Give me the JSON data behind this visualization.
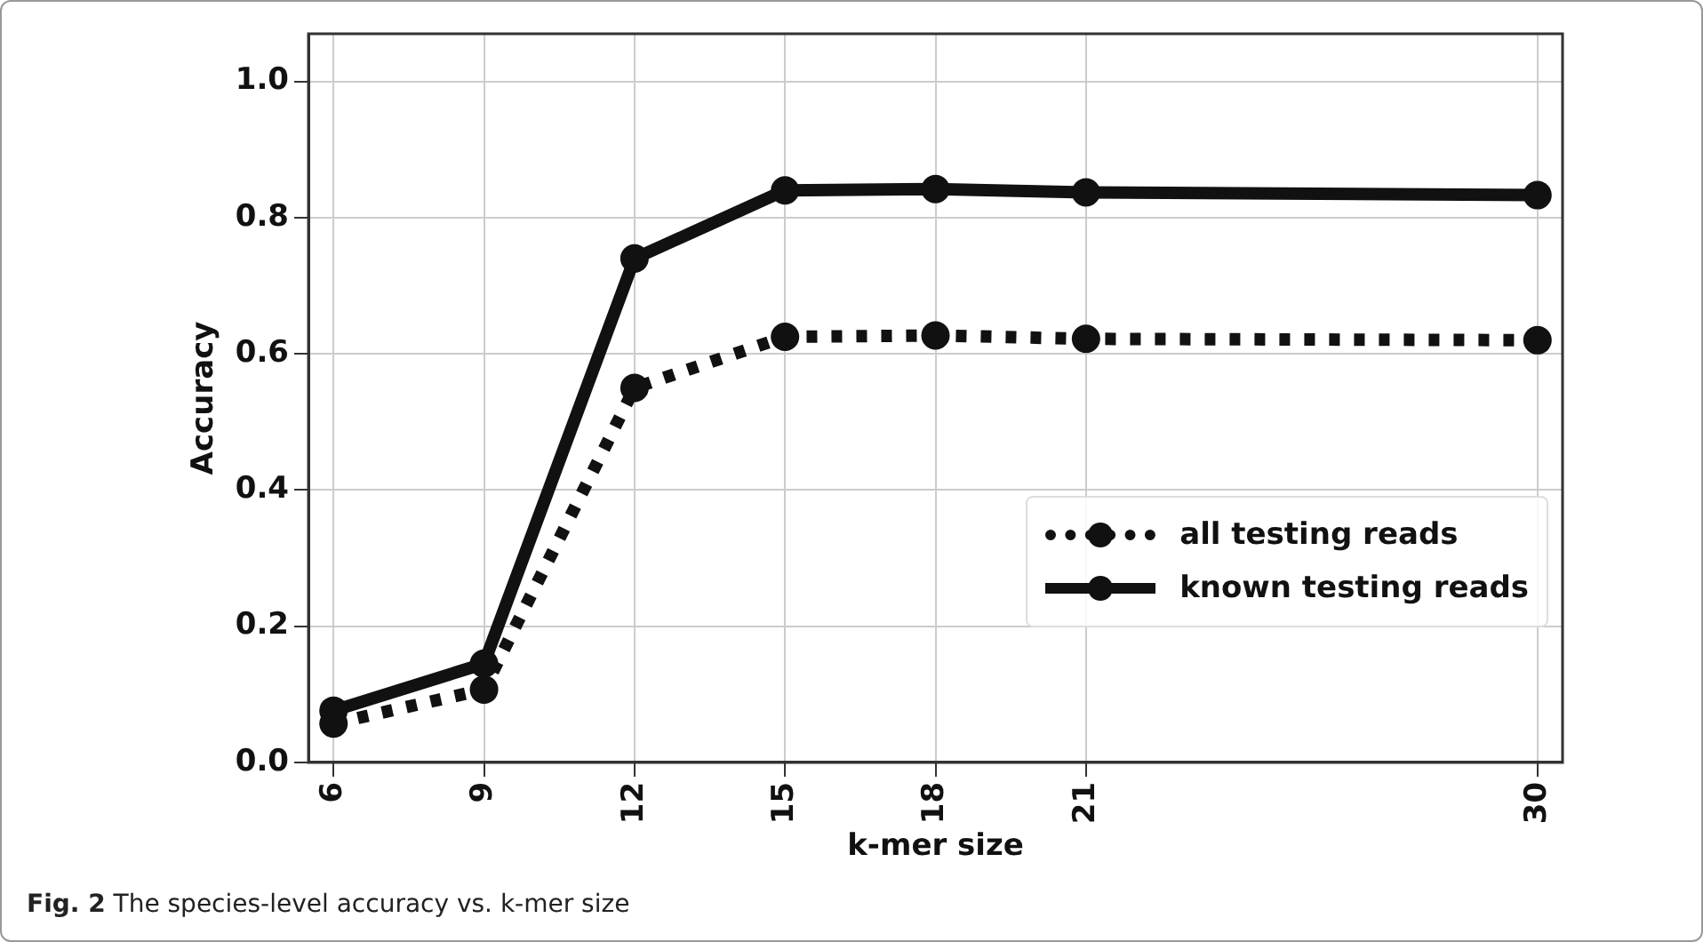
{
  "chart_data": {
    "type": "line",
    "xlabel": "k-mer size",
    "ylabel": "Accuracy",
    "x": [
      6,
      9,
      12,
      15,
      18,
      21,
      30
    ],
    "series": [
      {
        "name": "all testing reads",
        "color": "#111111",
        "values": [
          0.057,
          0.107,
          0.55,
          0.625,
          0.627,
          0.622,
          0.62
        ],
        "line_style": "dotted"
      },
      {
        "name": "known testing reads",
        "color": "#111111",
        "values": [
          0.076,
          0.145,
          0.74,
          0.84,
          0.842,
          0.837,
          0.833
        ],
        "line_style": "solid"
      }
    ],
    "xlim": [
      5.5,
      30.5
    ],
    "xticks": [
      6,
      9,
      12,
      15,
      18,
      21,
      30
    ],
    "ylim": [
      0,
      1.07
    ],
    "yticks": [
      {
        "value": 0,
        "label": "0.0"
      },
      {
        "value": 0.2,
        "label": "0.2"
      },
      {
        "value": 0.4,
        "label": "0.4"
      },
      {
        "value": 0.6,
        "label": "0.6"
      },
      {
        "value": 0.8,
        "label": "0.8"
      },
      {
        "value": 1,
        "label": "1.0"
      }
    ],
    "grid": true,
    "legend": "bottom right",
    "marker": "circle",
    "annotations": [
      "Fig. 2 The species-level accuracy vs. k-mer size"
    ]
  }
}
